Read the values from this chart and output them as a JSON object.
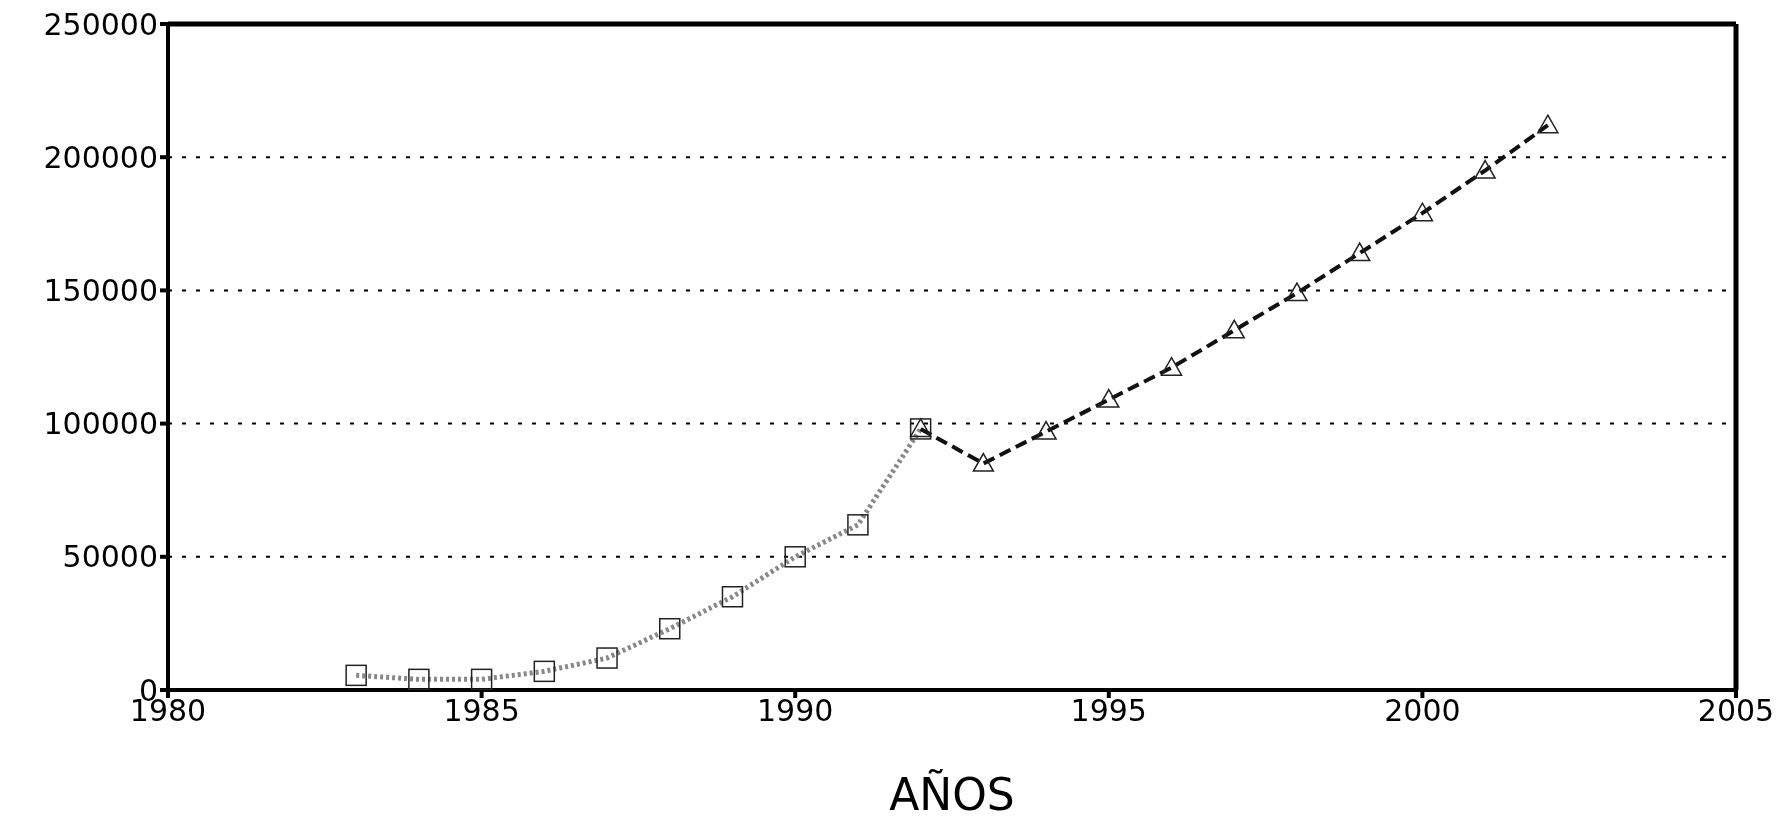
{
  "chart_data": {
    "type": "line",
    "xlabel": "AÑOS",
    "xlim": [
      1980,
      2005
    ],
    "xticks": [
      1980,
      1985,
      1990,
      1995,
      2000,
      2005
    ],
    "ylim": [
      0,
      250000
    ],
    "yticks": [
      0,
      50000,
      100000,
      150000,
      200000,
      250000
    ],
    "grid": "y",
    "legend": false,
    "series": [
      {
        "color": "#888888",
        "marker": "square",
        "line_style": "dotted",
        "x": [
          1983,
          1984,
          1985,
          1986,
          1987,
          1988,
          1989,
          1990,
          1991,
          1992
        ],
        "values": [
          5500,
          4000,
          4000,
          7000,
          12000,
          23000,
          35000,
          50000,
          62000,
          98000
        ]
      },
      {
        "color": "#111111",
        "marker": "triangle",
        "line_style": "dashed",
        "x": [
          1992,
          1993,
          1994,
          1995,
          1996,
          1997,
          1998,
          1999,
          2000,
          2001,
          2002
        ],
        "values": [
          98000,
          85000,
          97000,
          109000,
          121000,
          135000,
          149000,
          164000,
          179000,
          195000,
          212000
        ]
      }
    ]
  }
}
